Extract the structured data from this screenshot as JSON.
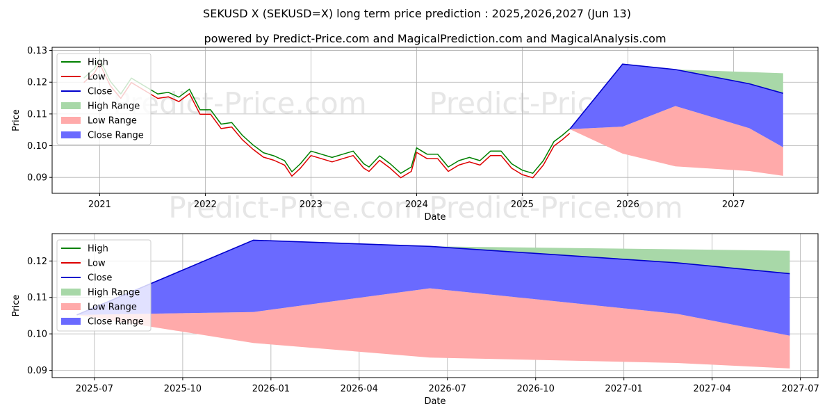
{
  "title": "SEKUSD X (SEKUSD=X) long term price prediction : 2025,2026,2027 (Jun 13)",
  "subtitle": "powered by Predict-Price.com and MagicalPrediction.com and MagicalAnalysis.com",
  "watermark": "Predict-Price.com",
  "colors": {
    "high": "#008000",
    "low": "#dd0000",
    "close": "#0000cc",
    "high_range": "#a8d8a8",
    "low_range": "#ffaaaa",
    "close_range": "#6a6aff",
    "grid": "#b0b0b0"
  },
  "legend": [
    "High",
    "Low",
    "Close",
    "High Range",
    "Low Range",
    "Close Range"
  ],
  "chart_data": [
    {
      "type": "line",
      "title": "",
      "xlabel": "Date",
      "ylabel": "Price",
      "xlim": [
        2020.55,
        2027.8
      ],
      "ylim": [
        0.085,
        0.131
      ],
      "x_ticks": [
        2021,
        2022,
        2023,
        2024,
        2025,
        2026,
        2027
      ],
      "x_tick_labels": [
        "2021",
        "2022",
        "2023",
        "2024",
        "2025",
        "2026",
        "2027"
      ],
      "y_ticks": [
        0.09,
        0.1,
        0.11,
        0.12,
        0.13
      ],
      "y_tick_labels": [
        "0.09",
        "0.10",
        "0.11",
        "0.12",
        "0.13"
      ],
      "grid": true,
      "legend_position": "top-left",
      "history": {
        "x": [
          2020.85,
          2020.95,
          2021.0,
          2021.1,
          2021.2,
          2021.3,
          2021.45,
          2021.55,
          2021.65,
          2021.75,
          2021.85,
          2021.95,
          2022.05,
          2022.15,
          2022.25,
          2022.35,
          2022.45,
          2022.55,
          2022.65,
          2022.75,
          2022.82,
          2022.9,
          2023.0,
          2023.1,
          2023.2,
          2023.3,
          2023.4,
          2023.5,
          2023.55,
          2023.65,
          2023.75,
          2023.85,
          2023.95,
          2024.0,
          2024.1,
          2024.2,
          2024.3,
          2024.4,
          2024.5,
          2024.6,
          2024.7,
          2024.8,
          2024.9,
          2025.0,
          2025.1,
          2025.2,
          2025.3,
          2025.38,
          2025.45
        ],
        "close": [
          0.1205,
          0.1235,
          0.1265,
          0.1195,
          0.1155,
          0.1205,
          0.1175,
          0.1155,
          0.116,
          0.1145,
          0.117,
          0.1105,
          0.1105,
          0.106,
          0.1065,
          0.1025,
          0.0995,
          0.097,
          0.096,
          0.0945,
          0.091,
          0.0935,
          0.0975,
          0.0965,
          0.0955,
          0.0965,
          0.0975,
          0.0935,
          0.0925,
          0.096,
          0.0935,
          0.0905,
          0.0925,
          0.0985,
          0.0965,
          0.0965,
          0.0925,
          0.0945,
          0.0955,
          0.0945,
          0.0975,
          0.0975,
          0.0935,
          0.0915,
          0.0905,
          0.0945,
          0.1005,
          0.1025,
          0.1045
        ]
      },
      "forecast": {
        "x": [
          2025.45,
          2025.95,
          2026.45,
          2027.15,
          2027.47
        ],
        "close": [
          0.1052,
          0.1257,
          0.124,
          0.1195,
          0.1165
        ],
        "high_range": [
          0.1052,
          0.1257,
          0.124,
          0.1232,
          0.1228
        ],
        "low_range_top": [
          0.1052,
          0.106,
          0.1125,
          0.1055,
          0.0995
        ],
        "low_range_bottom": [
          0.1052,
          0.0975,
          0.0935,
          0.092,
          0.0905
        ],
        "close_range_bottom": [
          0.1052,
          0.106,
          0.1125,
          0.1055,
          0.0995
        ]
      }
    },
    {
      "type": "area",
      "title": "",
      "xlabel": "Date",
      "ylabel": "Price",
      "xlim": [
        2025.38,
        2027.55
      ],
      "ylim": [
        0.088,
        0.1275
      ],
      "x_ticks": [
        2025.5,
        2025.75,
        2026.0,
        2026.25,
        2026.5,
        2026.75,
        2027.0,
        2027.25,
        2027.5
      ],
      "x_tick_labels": [
        "2025-07",
        "2025-10",
        "2026-01",
        "2026-04",
        "2026-07",
        "2026-10",
        "2027-01",
        "2027-04",
        "2027-07"
      ],
      "y_ticks": [
        0.09,
        0.1,
        0.11,
        0.12
      ],
      "y_tick_labels": [
        "0.09",
        "0.10",
        "0.11",
        "0.12"
      ],
      "grid": true,
      "legend_position": "top-left",
      "forecast": {
        "x": [
          2025.45,
          2025.95,
          2026.45,
          2027.15,
          2027.47
        ],
        "close": [
          0.1052,
          0.1257,
          0.124,
          0.1195,
          0.1165
        ],
        "high_range": [
          0.1052,
          0.1257,
          0.124,
          0.1232,
          0.1228
        ],
        "low_range_top": [
          0.1052,
          0.106,
          0.1125,
          0.1055,
          0.0995
        ],
        "low_range_bottom": [
          0.1052,
          0.0975,
          0.0935,
          0.092,
          0.0905
        ],
        "close_range_bottom": [
          0.1052,
          0.106,
          0.1125,
          0.1055,
          0.0995
        ]
      }
    }
  ]
}
